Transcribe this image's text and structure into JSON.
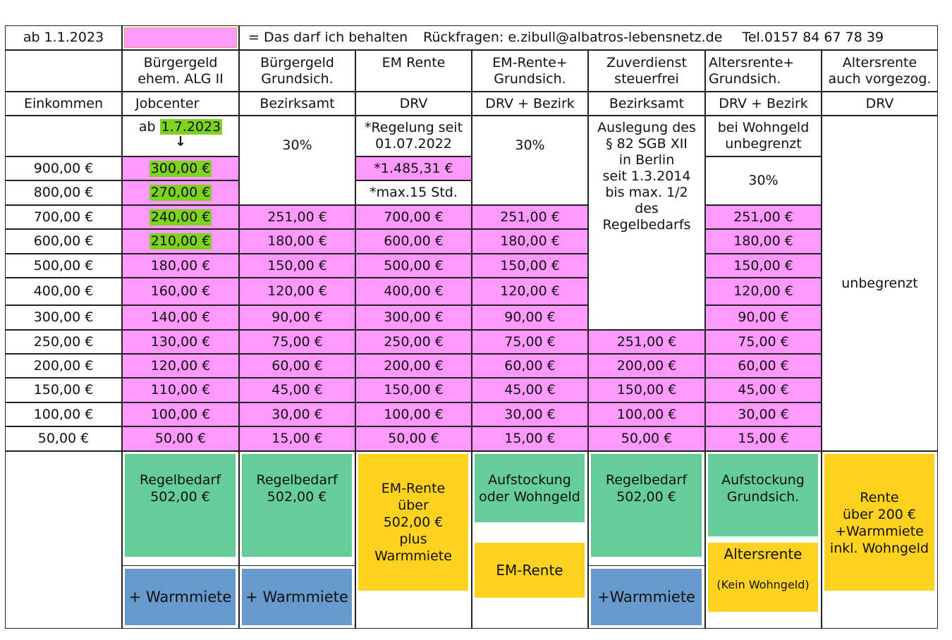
{
  "header": {
    "date": "ab 1.1.2023",
    "legend_text": "= Das darf ich behalten",
    "contact": "Rückfragen: e.zibull@albatros-lebensnetz.de",
    "phone": "Tel.0157 84 67 78 39",
    "legend_color": "#ff99ff"
  },
  "columns": [
    {
      "title": "Bürgergeld\nehem. ALG II",
      "office": "Jobcenter"
    },
    {
      "title": "Bürgergeld\nGrundsich.",
      "office": "Bezirksamt"
    },
    {
      "title": "EM Rente",
      "office": "DRV"
    },
    {
      "title": "EM-Rente+\nGrundsich.",
      "office": "DRV + Bezirk"
    },
    {
      "title": "Zuverdienst\nsteuerfrei",
      "office": "Bezirksamt"
    },
    {
      "title": "Altersrente+\nGrundsich.",
      "office": "DRV + Bezirk"
    },
    {
      "title": "Altersrente\nauch vorgezog.",
      "office": "DRV"
    }
  ],
  "income_label": "Einkommen",
  "notes": {
    "jobcenter_prefix": "ab ",
    "jobcenter_date": "1.7.2023",
    "jobcenter_arrow": "↓",
    "grundsich_pct": "30%",
    "em_rule": "*Regelung seit\n01.07.2022",
    "em_max_amount": "*1.485,31 €",
    "em_max_hours": "*max.15 Std.",
    "em_grundsich_pct": "30%",
    "zuverdienst_note": "Auslegung des\n§ 82 SGB XII\nin Berlin\nseit 1.3.2014\nbis max.  1/2\ndes\nRegelbedarfs",
    "alters_wohngeld": "bei Wohngeld\nunbegrenzt",
    "alters_pct": "30%",
    "unlimited": "unbegrenzt"
  },
  "incomes": [
    "900,00 €",
    "800,00 €",
    "700,00 €",
    "600,00 €",
    "500,00 €",
    "400,00 €",
    "300,00 €",
    "250,00 €",
    "200,00 €",
    "150,00 €",
    "100,00 €",
    "50,00 €"
  ],
  "jobcenter": [
    "300,00 €",
    "270,00 €",
    "240,00 €",
    "210,00 €",
    "180,00 €",
    "160,00 €",
    "140,00 €",
    "130,00 €",
    "120,00 €",
    "110,00 €",
    "100,00 €",
    "50,00 €"
  ],
  "grundsich": [
    "251,00 €",
    "180,00 €",
    "150,00 €",
    "120,00 €",
    "90,00 €",
    "75,00 €",
    "60,00 €",
    "45,00 €",
    "30,00 €",
    "15,00 €"
  ],
  "em_rente": [
    "700,00 €",
    "600,00 €",
    "500,00 €",
    "400,00 €",
    "300,00 €",
    "250,00 €",
    "200,00 €",
    "150,00 €",
    "100,00 €",
    "50,00 €"
  ],
  "em_grundsich": [
    "251,00 €",
    "180,00 €",
    "150,00 €",
    "120,00 €",
    "90,00 €",
    "75,00 €",
    "60,00 €",
    "45,00 €",
    "30,00 €",
    "15,00 €"
  ],
  "zuverdienst": [
    "251,00 €",
    "200,00 €",
    "150,00 €",
    "100,00 €",
    "50,00 €"
  ],
  "alters_grundsich": [
    "251,00 €",
    "180,00 €",
    "150,00 €",
    "120,00 €",
    "90,00 €",
    "75,00 €",
    "60,00 €",
    "45,00 €",
    "30,00 €",
    "15,00 €"
  ],
  "bottom": {
    "regelbedarf": "Regelbedarf\n502,00 €",
    "warmmiete": "+ Warmmiete",
    "warmmiete_compact": "+Warmmiete",
    "em_rente_box": "EM-Rente\nüber\n502,00 €\nplus\nWarmmiete",
    "aufstockung_wohngeld": "Aufstockung\noder Wohngeld",
    "em_rente_label": "EM-Rente",
    "aufstockung_grundsich": "Aufstockung\nGrundsich.",
    "altersrente": "Altersrente",
    "kein_wohngeld": "(Kein Wohngeld)",
    "rente_box": "Rente\nüber 200 €\n+Warmmiete\ninkl. Wohngeld"
  },
  "colors": {
    "pink": "#ff99ff",
    "highlight": "#7ed321",
    "green": "#66cc99",
    "blue": "#6699cc",
    "yellow": "#ffd21f"
  }
}
